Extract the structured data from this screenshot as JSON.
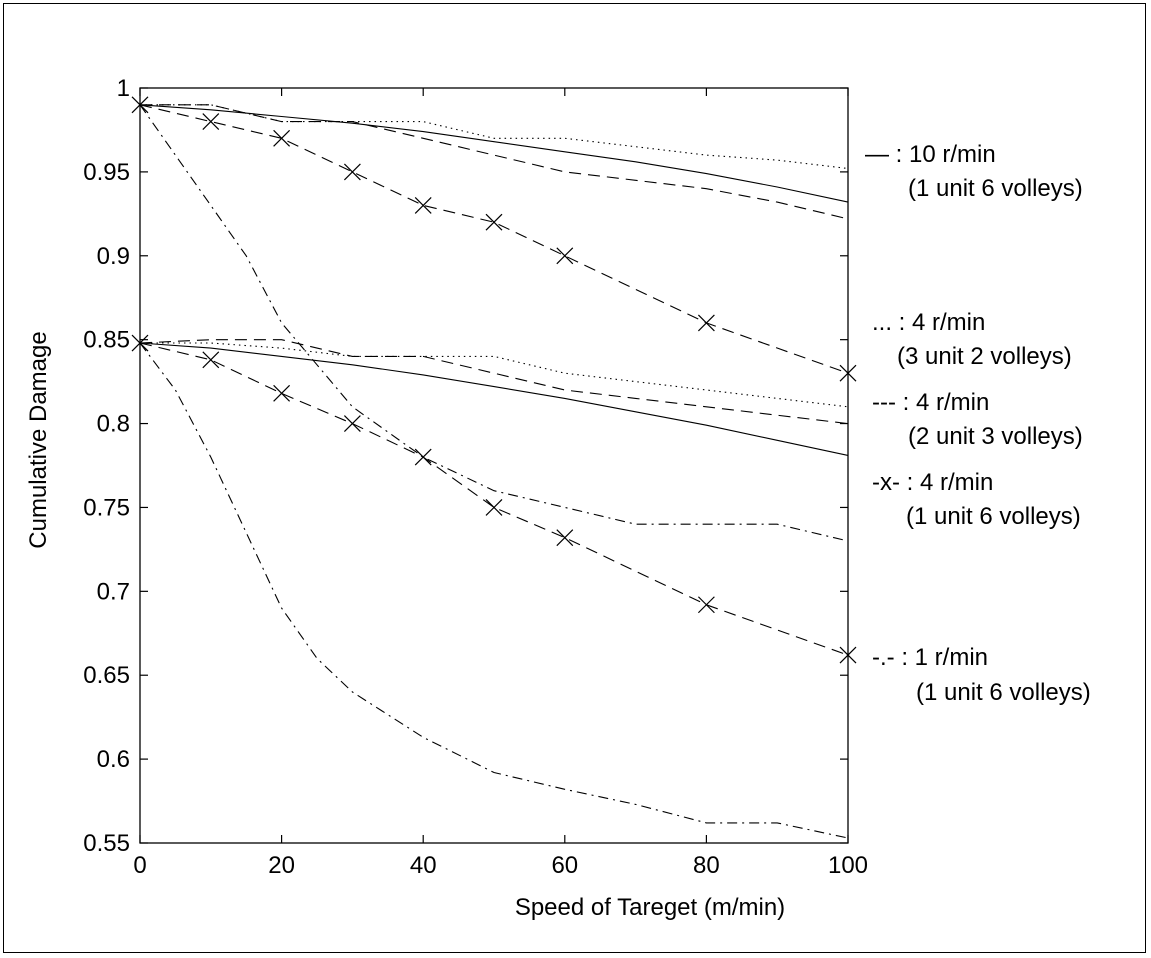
{
  "chart_data": {
    "type": "line",
    "title": "",
    "xlabel": "Speed of Tareget (m/min)",
    "ylabel": "Cumulative Damage",
    "xlim": [
      0,
      100
    ],
    "ylim": [
      0.55,
      1.0
    ],
    "xticks": [
      0,
      20,
      40,
      60,
      80,
      100
    ],
    "yticks": [
      0.55,
      0.6,
      0.65,
      0.7,
      0.75,
      0.8,
      0.85,
      0.9,
      0.95,
      1.0
    ],
    "xtick_labels": [
      "0",
      "20",
      "40",
      "60",
      "80",
      "100"
    ],
    "ytick_labels": [
      "0.55",
      "0.6",
      "0.65",
      "0.7",
      "0.75",
      "0.8",
      "0.85",
      "0.9",
      "0.95",
      "1"
    ],
    "grid": false,
    "legend_placement": "right",
    "series": [
      {
        "group": "upper",
        "style": "solid",
        "marker": "none",
        "x": [
          0,
          10,
          20,
          30,
          40,
          50,
          60,
          70,
          80,
          90,
          100
        ],
        "y": [
          0.99,
          0.987,
          0.983,
          0.979,
          0.974,
          0.968,
          0.962,
          0.956,
          0.949,
          0.941,
          0.932
        ]
      },
      {
        "group": "upper",
        "style": "dotted",
        "marker": "none",
        "x": [
          0,
          10,
          20,
          30,
          40,
          50,
          60,
          70,
          80,
          90,
          100
        ],
        "y": [
          0.99,
          0.99,
          0.98,
          0.98,
          0.98,
          0.97,
          0.97,
          0.965,
          0.96,
          0.957,
          0.952
        ]
      },
      {
        "group": "upper",
        "style": "dashed",
        "marker": "none",
        "x": [
          0,
          10,
          20,
          30,
          40,
          50,
          60,
          70,
          80,
          90,
          100
        ],
        "y": [
          0.99,
          0.99,
          0.98,
          0.98,
          0.97,
          0.96,
          0.95,
          0.945,
          0.94,
          0.932,
          0.922
        ]
      },
      {
        "group": "upper",
        "style": "dashed",
        "marker": "x",
        "x": [
          0,
          10,
          20,
          30,
          40,
          50,
          60,
          80,
          100
        ],
        "y": [
          0.99,
          0.98,
          0.97,
          0.95,
          0.93,
          0.92,
          0.9,
          0.86,
          0.83
        ]
      },
      {
        "group": "upper",
        "style": "dashdot",
        "marker": "none",
        "x": [
          0,
          5,
          10,
          15,
          20,
          25,
          30,
          40,
          50,
          60,
          70,
          80,
          90,
          100
        ],
        "y": [
          0.99,
          0.96,
          0.93,
          0.9,
          0.86,
          0.835,
          0.81,
          0.78,
          0.76,
          0.75,
          0.74,
          0.74,
          0.74,
          0.73
        ]
      },
      {
        "group": "lower",
        "style": "solid",
        "marker": "none",
        "x": [
          0,
          10,
          20,
          30,
          40,
          50,
          60,
          70,
          80,
          90,
          100
        ],
        "y": [
          0.848,
          0.845,
          0.84,
          0.835,
          0.829,
          0.822,
          0.815,
          0.807,
          0.799,
          0.79,
          0.781
        ]
      },
      {
        "group": "lower",
        "style": "dotted",
        "marker": "none",
        "x": [
          0,
          10,
          20,
          30,
          40,
          50,
          60,
          70,
          80,
          90,
          100
        ],
        "y": [
          0.848,
          0.848,
          0.845,
          0.84,
          0.84,
          0.84,
          0.83,
          0.825,
          0.82,
          0.815,
          0.81
        ]
      },
      {
        "group": "lower",
        "style": "dashed",
        "marker": "none",
        "x": [
          0,
          10,
          20,
          30,
          40,
          50,
          60,
          70,
          80,
          90,
          100
        ],
        "y": [
          0.848,
          0.85,
          0.85,
          0.84,
          0.84,
          0.83,
          0.82,
          0.815,
          0.81,
          0.805,
          0.8
        ]
      },
      {
        "group": "lower",
        "style": "dashed",
        "marker": "x",
        "x": [
          0,
          10,
          20,
          30,
          40,
          50,
          60,
          80,
          100
        ],
        "y": [
          0.848,
          0.838,
          0.818,
          0.8,
          0.78,
          0.75,
          0.732,
          0.692,
          0.662
        ]
      },
      {
        "group": "lower",
        "style": "dashdot",
        "marker": "none",
        "x": [
          0,
          5,
          10,
          15,
          20,
          25,
          30,
          40,
          50,
          60,
          70,
          80,
          90,
          100
        ],
        "y": [
          0.848,
          0.82,
          0.78,
          0.735,
          0.69,
          0.66,
          0.64,
          0.613,
          0.592,
          0.582,
          0.573,
          0.562,
          0.562,
          0.553
        ]
      }
    ],
    "legend": [
      {
        "line1": "— : 10 r/min",
        "line2": "(1 unit 6 volleys)"
      },
      {
        "line1": "... : 4 r/min",
        "line2": "(3 unit 2 volleys)"
      },
      {
        "line1": "--- : 4 r/min",
        "line2": "(2 unit 3 volleys)"
      },
      {
        "line1": "-x- : 4 r/min",
        "line2": "(1 unit 6 volleys)"
      },
      {
        "line1": "-.- : 1 r/min",
        "line2": "(1 unit 6 volleys)"
      }
    ]
  }
}
